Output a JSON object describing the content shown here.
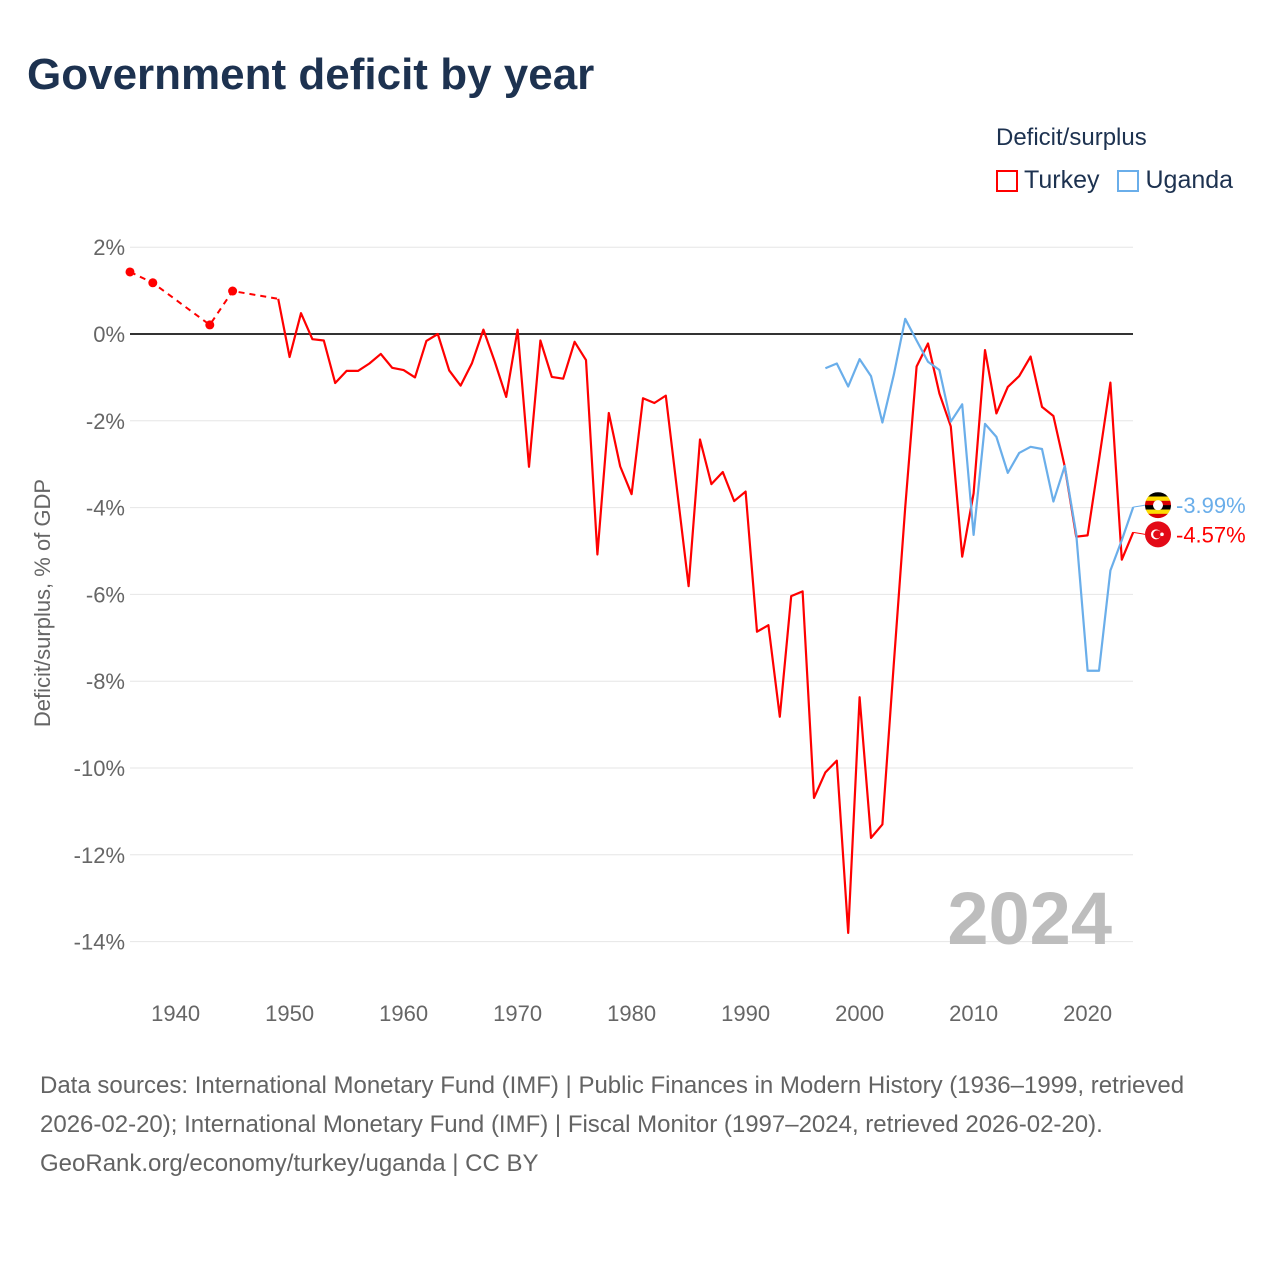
{
  "title": "Government deficit by year",
  "legend": {
    "title": "Deficit/surplus",
    "items": [
      {
        "label": "Turkey",
        "color": "#ff0000"
      },
      {
        "label": "Uganda",
        "color": "#6aaeea"
      }
    ]
  },
  "year_watermark": "2024",
  "footer": {
    "sources": "Data sources: International Monetary Fund (IMF) | Public Finances in Modern History (1936–1999, retrieved 2026-02-20); International Monetary Fund (IMF) | Fiscal Monitor (1997–2024, retrieved 2026-02-20).",
    "credit": "GeoRank.org/economy/turkey/uganda | CC BY"
  },
  "chart_data": {
    "type": "line",
    "title": "Government deficit by year",
    "xlabel": "",
    "ylabel": "Deficit/surplus, % of GDP",
    "xlim": [
      1936,
      2024
    ],
    "ylim": [
      -14.9,
      2.3
    ],
    "yticks": [
      2,
      0,
      -2,
      -4,
      -6,
      -8,
      -10,
      -12,
      -14
    ],
    "ytick_labels": [
      "2%",
      "0%",
      "-2%",
      "-4%",
      "-6%",
      "-8%",
      "-10%",
      "-12%",
      "-14%"
    ],
    "xticks": [
      1940,
      1950,
      1960,
      1970,
      1980,
      1990,
      2000,
      2010,
      2020
    ],
    "xtick_labels": [
      "1940",
      "1950",
      "1960",
      "1970",
      "1980",
      "1990",
      "2000",
      "2010",
      "2020"
    ],
    "grid": true,
    "legend_position": "top-right",
    "series": [
      {
        "name": "Turkey",
        "color": "#ff0000",
        "end_label": "-4.57%",
        "sparse_points": [
          [
            1936,
            1.43
          ],
          [
            1938,
            1.18
          ],
          [
            1943,
            0.21
          ],
          [
            1945,
            0.99
          ]
        ],
        "points": [
          [
            1949,
            0.81
          ],
          [
            1950,
            -0.53
          ],
          [
            1951,
            0.48
          ],
          [
            1952,
            -0.12
          ],
          [
            1953,
            -0.15
          ],
          [
            1954,
            -1.13
          ],
          [
            1955,
            -0.85
          ],
          [
            1956,
            -0.85
          ],
          [
            1957,
            -0.68
          ],
          [
            1958,
            -0.46
          ],
          [
            1959,
            -0.78
          ],
          [
            1960,
            -0.83
          ],
          [
            1961,
            -1.0
          ],
          [
            1962,
            -0.16
          ],
          [
            1963,
            0.0
          ],
          [
            1964,
            -0.84
          ],
          [
            1965,
            -1.19
          ],
          [
            1966,
            -0.67
          ],
          [
            1967,
            0.1
          ],
          [
            1968,
            -0.64
          ],
          [
            1969,
            -1.45
          ],
          [
            1970,
            0.1
          ],
          [
            1971,
            -3.06
          ],
          [
            1972,
            -0.15
          ],
          [
            1973,
            -0.99
          ],
          [
            1974,
            -1.03
          ],
          [
            1975,
            -0.18
          ],
          [
            1976,
            -0.6
          ],
          [
            1977,
            -5.08
          ],
          [
            1978,
            -1.82
          ],
          [
            1979,
            -3.05
          ],
          [
            1980,
            -3.69
          ],
          [
            1981,
            -1.48
          ],
          [
            1982,
            -1.59
          ],
          [
            1983,
            -1.42
          ],
          [
            1984,
            -3.62
          ],
          [
            1985,
            -5.81
          ],
          [
            1986,
            -2.43
          ],
          [
            1987,
            -3.46
          ],
          [
            1988,
            -3.18
          ],
          [
            1989,
            -3.85
          ],
          [
            1990,
            -3.63
          ],
          [
            1991,
            -6.86
          ],
          [
            1992,
            -6.71
          ],
          [
            1993,
            -8.82
          ],
          [
            1994,
            -6.04
          ],
          [
            1995,
            -5.93
          ],
          [
            1996,
            -10.69
          ],
          [
            1997,
            -10.1
          ],
          [
            1998,
            -9.83
          ],
          [
            1999,
            -13.8
          ],
          [
            2000,
            -8.37
          ],
          [
            2001,
            -11.61
          ],
          [
            2002,
            -11.3
          ],
          [
            2003,
            -7.6
          ],
          [
            2004,
            -4.0
          ],
          [
            2005,
            -0.75
          ],
          [
            2006,
            -0.22
          ],
          [
            2007,
            -1.37
          ],
          [
            2008,
            -2.13
          ],
          [
            2009,
            -5.13
          ],
          [
            2010,
            -3.67
          ],
          [
            2011,
            -0.37
          ],
          [
            2012,
            -1.83
          ],
          [
            2013,
            -1.22
          ],
          [
            2014,
            -0.97
          ],
          [
            2015,
            -0.52
          ],
          [
            2016,
            -1.68
          ],
          [
            2017,
            -1.89
          ],
          [
            2018,
            -3.06
          ],
          [
            2019,
            -4.67
          ],
          [
            2020,
            -4.64
          ],
          [
            2021,
            -2.9
          ],
          [
            2022,
            -1.12
          ],
          [
            2023,
            -5.2
          ],
          [
            2024,
            -4.57
          ]
        ]
      },
      {
        "name": "Uganda",
        "color": "#6aaeea",
        "end_label": "-3.99%",
        "sparse_points": [],
        "points": [
          [
            1997,
            -0.79
          ],
          [
            1998,
            -0.68
          ],
          [
            1999,
            -1.21
          ],
          [
            2000,
            -0.58
          ],
          [
            2001,
            -0.97
          ],
          [
            2002,
            -2.04
          ],
          [
            2003,
            -0.94
          ],
          [
            2004,
            0.35
          ],
          [
            2005,
            -0.15
          ],
          [
            2006,
            -0.64
          ],
          [
            2007,
            -0.83
          ],
          [
            2008,
            -2.02
          ],
          [
            2009,
            -1.62
          ],
          [
            2010,
            -4.63
          ],
          [
            2011,
            -2.07
          ],
          [
            2012,
            -2.37
          ],
          [
            2013,
            -3.2
          ],
          [
            2014,
            -2.74
          ],
          [
            2015,
            -2.6
          ],
          [
            2016,
            -2.65
          ],
          [
            2017,
            -3.86
          ],
          [
            2018,
            -3.04
          ],
          [
            2019,
            -4.6
          ],
          [
            2020,
            -7.76
          ],
          [
            2021,
            -7.76
          ],
          [
            2022,
            -5.45
          ],
          [
            2023,
            -4.75
          ],
          [
            2024,
            -3.99
          ]
        ]
      }
    ]
  }
}
